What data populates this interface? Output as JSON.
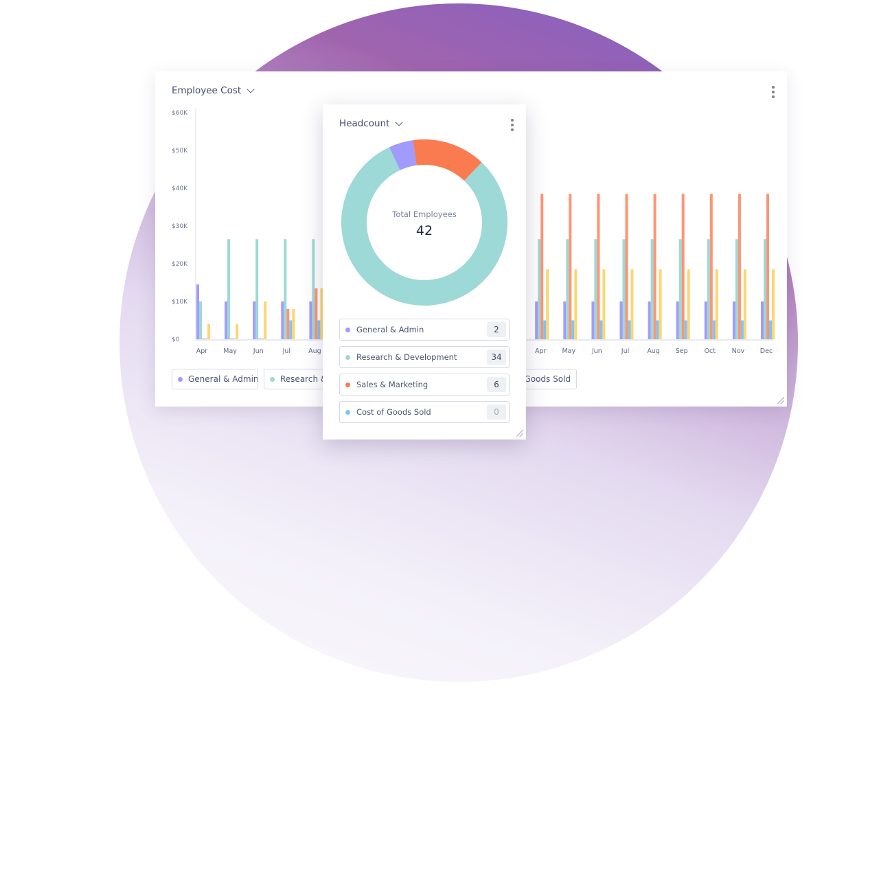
{
  "employee_cost": {
    "title": "Employee Cost",
    "legend": [
      {
        "label": "General & Admin",
        "color": "#a29bfe"
      },
      {
        "label": "Research &",
        "color": "#9dd9d6"
      },
      {
        "label": "Goods Sold",
        "color": "#7fc4f8"
      }
    ],
    "chart_data": {
      "type": "bar",
      "ylim": [
        0,
        60000
      ],
      "yticks": [
        "$0",
        "$10K",
        "$20K",
        "$30K",
        "$40K",
        "$50K",
        "$60K"
      ],
      "categories": [
        "Apr",
        "May",
        "Jun",
        "Jul",
        "Aug",
        "Apr",
        "May",
        "Jun",
        "Jul",
        "Aug",
        "Sep",
        "Oct",
        "Nov",
        "Dec"
      ],
      "series": [
        {
          "color": "#a29bfe",
          "values": [
            14500,
            10000,
            10000,
            10000,
            10000,
            10000,
            10000,
            10000,
            10000,
            10000,
            10000,
            10000,
            10000,
            10000
          ]
        },
        {
          "color": "#9dd9d6",
          "values": [
            10000,
            26500,
            26500,
            26500,
            26500,
            26500,
            26500,
            26500,
            26500,
            26500,
            26500,
            26500,
            26500,
            26500
          ]
        },
        {
          "color": "#ff9472",
          "values": [
            0,
            0,
            0,
            8000,
            13500,
            38500,
            38500,
            38500,
            38500,
            38500,
            38500,
            38500,
            38500,
            38500
          ]
        },
        {
          "color": "#7fc4f8",
          "values": [
            0,
            0,
            0,
            5000,
            5000,
            5000,
            5000,
            5000,
            5000,
            5000,
            5000,
            5000,
            5000,
            5000
          ]
        },
        {
          "color": "#fdd673",
          "values": [
            4000,
            4000,
            10000,
            8000,
            13500,
            18500,
            18500,
            18500,
            18500,
            18500,
            18500,
            18500,
            18500,
            18500
          ]
        }
      ]
    }
  },
  "headcount": {
    "title": "Headcount",
    "center_label": "Total Employees",
    "total": "42",
    "items": [
      {
        "label": "General & Admin",
        "count": "2",
        "value": 2,
        "color": "#a29bfe"
      },
      {
        "label": "Research & Development",
        "count": "34",
        "value": 34,
        "color": "#9dd9d6"
      },
      {
        "label": "Sales & Marketing",
        "count": "6",
        "value": 6,
        "color": "#fa7b50"
      },
      {
        "label": "Cost of Goods Sold",
        "count": "0",
        "value": 0,
        "color": "#7fc4f8"
      }
    ]
  }
}
